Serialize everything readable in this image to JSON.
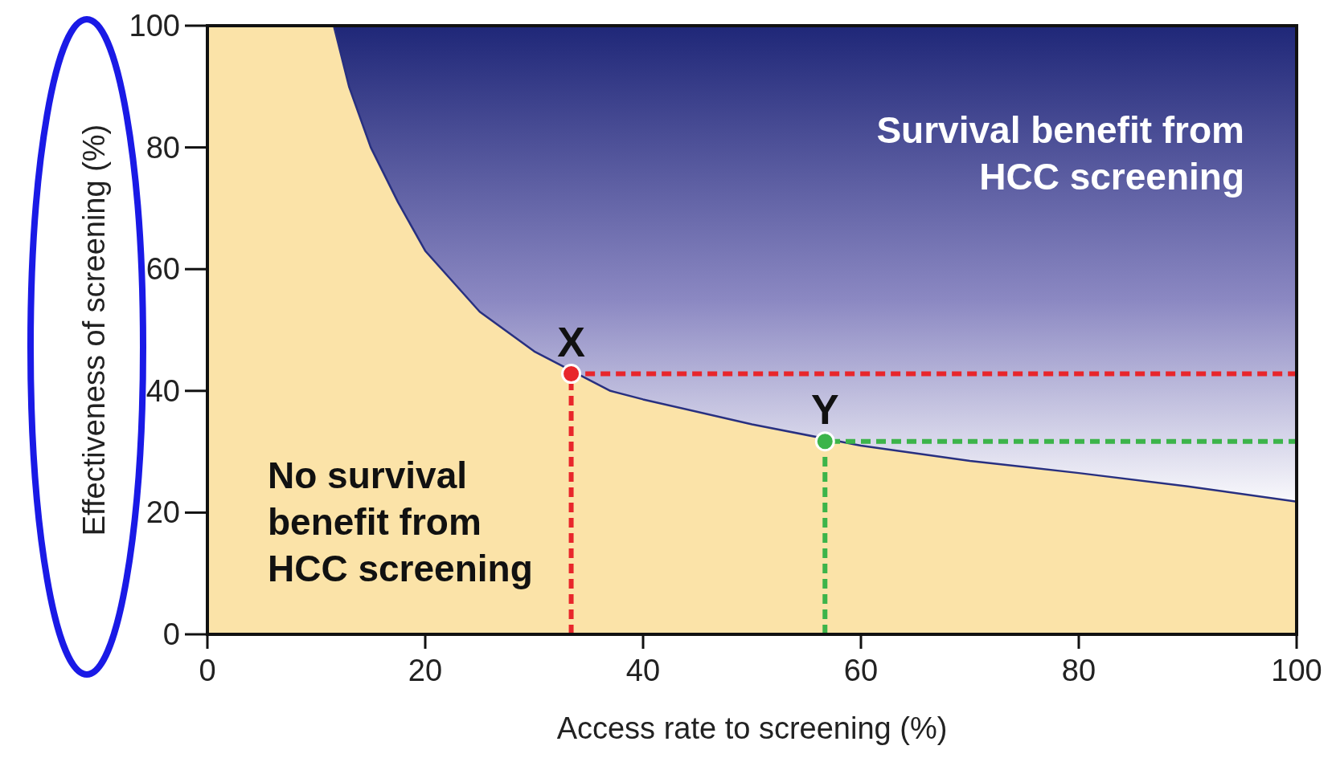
{
  "chart_data": {
    "type": "line",
    "xlabel": "Access rate to screening (%)",
    "ylabel": "Effectiveness of screening (%)",
    "xlim": [
      0,
      100
    ],
    "ylim": [
      0,
      100
    ],
    "xticks": [
      0,
      20,
      40,
      60,
      80,
      100
    ],
    "yticks": [
      0,
      20,
      40,
      60,
      80,
      100
    ],
    "grid": false,
    "series": [
      {
        "type": "area",
        "color": "#fbe3a8",
        "x": [
          0,
          11.6,
          13,
          15,
          17.5,
          20,
          25,
          30,
          37,
          40,
          50,
          60,
          70,
          80,
          90,
          100
        ],
        "values": [
          100,
          100,
          90,
          80,
          71,
          63,
          53,
          46.5,
          40,
          38.6,
          34.5,
          31,
          28.5,
          26.5,
          24.3,
          21.8
        ]
      },
      {
        "color": "#283080",
        "x": [
          11.6,
          13,
          15,
          17.5,
          20,
          25,
          30,
          33.4,
          37,
          40,
          50,
          56.7,
          60,
          70,
          80,
          90,
          100
        ],
        "values": [
          100,
          90,
          80,
          71,
          63,
          53,
          46.5,
          null,
          40,
          38.6,
          34.5,
          null,
          31,
          28.5,
          26.5,
          24.3,
          21.8
        ]
      },
      {
        "type": "line",
        "color": "#e8262b",
        "line_style": "dashed",
        "x": [
          33.4,
          33.4,
          100
        ],
        "values": [
          0,
          42.8,
          42.8
        ]
      },
      {
        "type": "line",
        "color": "#3cb44a",
        "line_style": "dashed",
        "x": [
          56.7,
          56.7,
          100
        ],
        "values": [
          0,
          31.7,
          31.7
        ]
      },
      {
        "type": "scatter",
        "marker": "circle",
        "colors": [
          "#e8262b",
          "#3cb44a"
        ],
        "x": [
          33.4,
          56.7
        ],
        "values": [
          42.8,
          31.7
        ]
      }
    ],
    "annotations": [
      {
        "text": "X",
        "x": 33.4,
        "y": 42.8
      },
      {
        "text": "Y",
        "x": 56.7,
        "y": 31.7
      },
      "Survival benefit from\nHCC screening",
      "No survival\nbenefit from\nHCC screening"
    ]
  }
}
